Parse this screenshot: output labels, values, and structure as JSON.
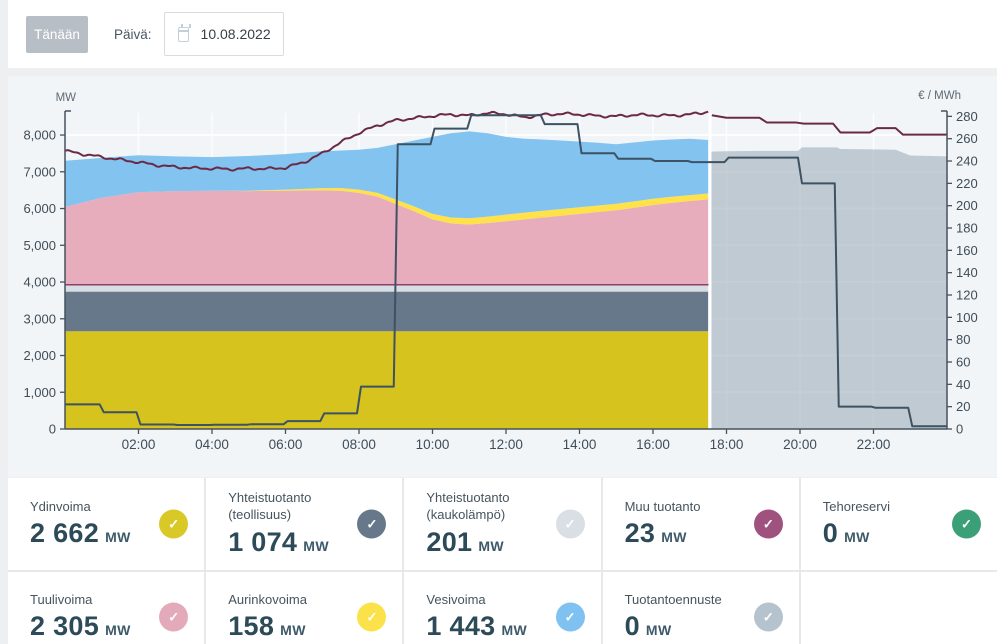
{
  "topbar": {
    "today_label": "Tänään",
    "date_label": "Päivä:",
    "date_value": "10.08.2022"
  },
  "chart": {
    "left_axis_label": "MW",
    "right_axis_label": "€ / MWh",
    "left_ticks": [
      {
        "v": 0,
        "label": "0"
      },
      {
        "v": 1000,
        "label": "1,000"
      },
      {
        "v": 2000,
        "label": "2,000"
      },
      {
        "v": 3000,
        "label": "3,000"
      },
      {
        "v": 4000,
        "label": "4,000"
      },
      {
        "v": 5000,
        "label": "5,000"
      },
      {
        "v": 6000,
        "label": "6,000"
      },
      {
        "v": 7000,
        "label": "7,000"
      },
      {
        "v": 8000,
        "label": "8,000"
      }
    ],
    "right_ticks": [
      {
        "v": 0,
        "label": "0"
      },
      {
        "v": 20,
        "label": "20"
      },
      {
        "v": 40,
        "label": "40"
      },
      {
        "v": 60,
        "label": "60"
      },
      {
        "v": 80,
        "label": "80"
      },
      {
        "v": 100,
        "label": "100"
      },
      {
        "v": 120,
        "label": "120"
      },
      {
        "v": 140,
        "label": "140"
      },
      {
        "v": 160,
        "label": "160"
      },
      {
        "v": 180,
        "label": "180"
      },
      {
        "v": 200,
        "label": "200"
      },
      {
        "v": 220,
        "label": "220"
      },
      {
        "v": 240,
        "label": "240"
      },
      {
        "v": 260,
        "label": "260"
      },
      {
        "v": 280,
        "label": "280"
      }
    ],
    "x_ticks": [
      {
        "t": 2,
        "label": "02:00"
      },
      {
        "t": 4,
        "label": "04:00"
      },
      {
        "t": 6,
        "label": "06:00"
      },
      {
        "t": 8,
        "label": "08:00"
      },
      {
        "t": 10,
        "label": "10:00"
      },
      {
        "t": 12,
        "label": "12:00"
      },
      {
        "t": 14,
        "label": "14:00"
      },
      {
        "t": 16,
        "label": "16:00"
      },
      {
        "t": 18,
        "label": "18:00"
      },
      {
        "t": 20,
        "label": "20:00"
      },
      {
        "t": 22,
        "label": "22:00"
      }
    ]
  },
  "chart_data": {
    "type": "area",
    "x_unit": "hours_of_day",
    "x_range": [
      0,
      24
    ],
    "left_axis_range_mw": [
      0,
      8600
    ],
    "right_axis_range_eur_mwh": [
      0,
      283
    ],
    "actual_forecast_boundary_hour": 17.55,
    "t_actual": [
      0,
      1,
      2,
      3,
      4,
      5,
      6,
      6.5,
      7,
      7.5,
      8,
      8.5,
      9,
      9.5,
      10,
      10.5,
      11,
      11.5,
      12,
      12.5,
      13,
      13.5,
      14,
      14.5,
      15,
      15.5,
      16,
      16.5,
      17,
      17.5
    ],
    "stack_series": [
      {
        "id": "ydinvoima",
        "color": "#d7c31d",
        "flat": 2660
      },
      {
        "id": "yhteistuotanto-teollisuus",
        "color": "#66788a",
        "flat": 1080
      },
      {
        "id": "yhteistuotanto-kaukolampo",
        "color": "#d7dde2",
        "flat": 180
      },
      {
        "id": "muu-tuotanto",
        "color": "#8e3f68",
        "flat": 25
      },
      {
        "id": "tuulivoima",
        "color": "#e7adbc",
        "values": [
          2100,
          2350,
          2500,
          2530,
          2540,
          2530,
          2540,
          2545,
          2550,
          2540,
          2480,
          2380,
          2180,
          1980,
          1760,
          1650,
          1620,
          1660,
          1710,
          1760,
          1810,
          1860,
          1910,
          1960,
          2010,
          2080,
          2150,
          2210,
          2260,
          2305
        ]
      },
      {
        "id": "aurinkovoima",
        "color": "#ffe14a",
        "values": [
          0,
          0,
          0,
          0,
          0,
          10,
          30,
          45,
          60,
          75,
          90,
          105,
          120,
          135,
          150,
          160,
          170,
          175,
          180,
          183,
          185,
          183,
          180,
          178,
          175,
          172,
          170,
          165,
          160,
          158
        ]
      },
      {
        "id": "vesivoima",
        "color": "#82c3f0",
        "values": [
          1255,
          1085,
          1005,
          945,
          915,
          945,
          965,
          985,
          1005,
          1020,
          1085,
          1220,
          1505,
          1790,
          2095,
          2295,
          2365,
          2270,
          2115,
          2012,
          1940,
          1862,
          1785,
          1707,
          1620,
          1603,
          1585,
          1560,
          1535,
          1458
        ]
      }
    ],
    "forecast_area": {
      "id": "tuotantoennuste",
      "color": "rgba(141,160,173,0.5)",
      "t": [
        17.58,
        18,
        19,
        19.95,
        20.05,
        21,
        21.1,
        22,
        22.6,
        23,
        24
      ],
      "values_mw": [
        7550,
        7560,
        7570,
        7570,
        7665,
        7665,
        7620,
        7610,
        7600,
        7445,
        7420
      ]
    },
    "line_dark_red": {
      "id": "total-line-dark-red",
      "color": "#6b2a44",
      "actual_t": [
        0,
        0.5,
        1,
        1.5,
        2,
        2.5,
        3,
        3.5,
        4,
        4.5,
        5,
        5.5,
        6,
        6.5,
        7,
        7.5,
        8,
        8.5,
        9,
        9.5,
        10,
        10.5,
        11,
        11.5,
        12,
        12.5,
        13,
        13.5,
        14,
        14.5,
        15,
        15.5,
        16,
        16.5,
        17,
        17.3,
        17.5
      ],
      "actual_mw": [
        7570,
        7480,
        7400,
        7330,
        7260,
        7180,
        7130,
        7100,
        7090,
        7070,
        7090,
        7080,
        7110,
        7260,
        7500,
        7800,
        8060,
        8260,
        8400,
        8460,
        8520,
        8560,
        8530,
        8600,
        8570,
        8480,
        8550,
        8580,
        8560,
        8520,
        8510,
        8550,
        8540,
        8530,
        8560,
        8600,
        8640
      ],
      "forecast_t": [
        17.6,
        18,
        18.9,
        19.1,
        19.9,
        20.1,
        20.9,
        21.1,
        21.9,
        22.1,
        22.6,
        22.8,
        24
      ],
      "forecast_mw": [
        8540,
        8470,
        8470,
        8340,
        8340,
        8310,
        8310,
        8070,
        8070,
        8190,
        8190,
        8010,
        8010
      ]
    },
    "price_steps": {
      "id": "hourly-price-step-line",
      "color": "#3d5263",
      "unit": "eur_mwh",
      "hourly_values": [
        22,
        15,
        4,
        3.6,
        3.8,
        4.2,
        7,
        14,
        38,
        255,
        269,
        281,
        281,
        273,
        247,
        242,
        240,
        239,
        243,
        243,
        220,
        20,
        19,
        2.5
      ]
    }
  },
  "cards": {
    "unit": "MW",
    "check_glyph": "✓",
    "rows": [
      [
        {
          "label": "Ydinvoima",
          "value": "2 662",
          "color": "#d9c927"
        },
        {
          "label": "Yhteistuotanto (teollisuus)",
          "value": "1 074",
          "color": "#67788a"
        },
        {
          "label": "Yhteistuotanto (kaukolämpö)",
          "value": "201",
          "color": "#d9dfe4"
        },
        {
          "label": "Muu tuotanto",
          "value": "23",
          "color": "#a0527f"
        },
        {
          "label": "Tehoreservi",
          "value": "0",
          "color": "#3ba078"
        }
      ],
      [
        {
          "label": "Tuulivoima",
          "value": "2 305",
          "color": "#e3abba"
        },
        {
          "label": "Aurinkovoima",
          "value": "158",
          "color": "#fbe24b"
        },
        {
          "label": "Vesivoima",
          "value": "1 443",
          "color": "#7fc1f0"
        },
        {
          "label": "Tuotantoennuste",
          "value": "0",
          "color": "#b5c3ce"
        }
      ]
    ]
  }
}
